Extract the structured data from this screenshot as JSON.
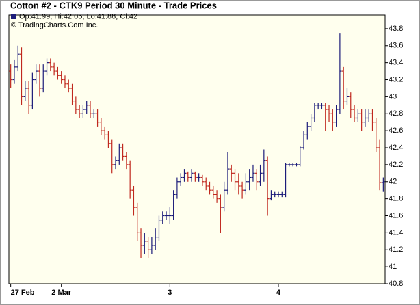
{
  "chart_data": {
    "type": "ohlc",
    "title": "Cotton #2 - CTK9 Period 30 Minute - Trade Prices",
    "legend_text": "Op:41.99, Hi:42.05, Lo:41.88, Cl:42",
    "credit": "© TradingCharts.Com Inc.",
    "up_color": "#1c1c7a",
    "down_color": "#c0281e",
    "categories": [
      "27 Feb",
      null,
      null,
      null,
      null,
      null,
      null,
      null,
      null,
      null,
      null,
      null,
      null,
      null,
      "2 Mar",
      null,
      null,
      null,
      null,
      null,
      null,
      null,
      null,
      null,
      null,
      null,
      null,
      null,
      null,
      null,
      null,
      null,
      null,
      null,
      null,
      null,
      null,
      null,
      null,
      null,
      null,
      null,
      null,
      null,
      "3",
      null,
      null,
      null,
      null,
      null,
      null,
      null,
      null,
      null,
      null,
      null,
      null,
      null,
      null,
      null,
      null,
      null,
      null,
      null,
      null,
      null,
      null,
      null,
      null,
      null,
      null,
      null,
      null,
      null,
      "4",
      null,
      null,
      null,
      null,
      null,
      null,
      null,
      null,
      null,
      null,
      null,
      null,
      null,
      null,
      null,
      null,
      null,
      null,
      null,
      null,
      null,
      null,
      null,
      null,
      null,
      null,
      null,
      null,
      null
    ],
    "open": [
      43.3,
      43.2,
      43.35,
      43.5,
      43.0,
      43.1,
      42.9,
      43.2,
      43.3,
      43.1,
      43.3,
      43.4,
      43.35,
      43.3,
      43.25,
      43.2,
      43.15,
      43.1,
      42.95,
      42.85,
      42.8,
      42.85,
      42.9,
      42.8,
      42.8,
      42.7,
      42.6,
      42.55,
      42.45,
      42.2,
      42.25,
      42.4,
      42.3,
      42.2,
      41.9,
      41.7,
      41.4,
      41.25,
      41.3,
      41.2,
      41.25,
      41.35,
      41.55,
      41.6,
      41.6,
      41.6,
      41.85,
      42.0,
      42.05,
      42.1,
      42.05,
      42.1,
      42.05,
      42.05,
      42.0,
      41.95,
      41.9,
      41.85,
      41.8,
      41.7,
      41.9,
      42.15,
      42.1,
      42.0,
      41.95,
      41.9,
      42.0,
      42.05,
      42.1,
      42.0,
      42.1,
      42.25,
      41.8,
      41.85,
      41.85,
      41.85,
      41.85,
      42.2,
      42.2,
      42.2,
      42.2,
      42.4,
      42.55,
      42.65,
      42.75,
      42.9,
      42.9,
      42.9,
      42.85,
      42.8,
      42.7,
      42.85,
      43.3,
      42.95,
      43.0,
      42.85,
      42.75,
      42.8,
      42.7,
      42.75,
      42.8,
      42.7,
      42.4,
      41.99
    ],
    "high": [
      43.38,
      43.43,
      43.6,
      43.58,
      43.18,
      43.18,
      43.28,
      43.38,
      43.38,
      43.38,
      43.45,
      43.45,
      43.4,
      43.35,
      43.3,
      43.25,
      43.2,
      43.15,
      43.0,
      42.9,
      42.9,
      42.95,
      42.95,
      42.85,
      42.85,
      42.75,
      42.65,
      42.6,
      42.5,
      42.3,
      42.45,
      42.45,
      42.35,
      42.25,
      41.95,
      41.75,
      41.45,
      41.4,
      41.35,
      41.35,
      41.45,
      41.6,
      41.65,
      41.65,
      41.7,
      41.9,
      42.05,
      42.1,
      42.15,
      42.12,
      42.15,
      42.12,
      42.1,
      42.08,
      42.05,
      42.0,
      41.95,
      41.9,
      41.85,
      42.0,
      42.35,
      42.2,
      42.15,
      42.1,
      42.0,
      42.1,
      42.15,
      42.2,
      42.15,
      42.2,
      42.38,
      42.3,
      41.9,
      41.88,
      41.88,
      41.88,
      42.22,
      42.22,
      42.22,
      42.22,
      42.42,
      42.6,
      42.7,
      42.8,
      42.93,
      42.93,
      42.93,
      42.93,
      42.9,
      42.85,
      42.9,
      43.75,
      43.35,
      43.1,
      43.05,
      42.9,
      42.85,
      42.85,
      42.85,
      42.85,
      42.85,
      42.75,
      42.5,
      42.05
    ],
    "low": [
      43.1,
      43.15,
      43.3,
      42.9,
      42.95,
      42.8,
      42.85,
      43.15,
      43.0,
      43.05,
      43.25,
      43.3,
      43.25,
      43.2,
      43.15,
      43.1,
      43.05,
      42.9,
      42.8,
      42.75,
      42.75,
      42.8,
      42.75,
      42.75,
      42.65,
      42.55,
      42.5,
      42.4,
      42.1,
      42.15,
      42.2,
      42.25,
      42.15,
      41.8,
      41.6,
      41.3,
      41.1,
      41.15,
      41.1,
      41.15,
      41.2,
      41.3,
      41.5,
      41.55,
      41.5,
      41.55,
      41.8,
      41.95,
      42.0,
      42.0,
      42.0,
      42.0,
      42.0,
      41.95,
      41.9,
      41.85,
      41.8,
      41.75,
      41.4,
      41.65,
      41.85,
      42.0,
      41.9,
      41.85,
      41.8,
      41.85,
      41.9,
      42.0,
      41.9,
      41.95,
      42.0,
      41.6,
      41.78,
      41.82,
      41.82,
      41.82,
      41.82,
      42.18,
      42.18,
      42.18,
      42.18,
      42.38,
      42.5,
      42.6,
      42.7,
      42.85,
      42.85,
      42.6,
      42.7,
      42.6,
      42.65,
      42.8,
      42.85,
      42.9,
      42.75,
      42.7,
      42.7,
      42.6,
      42.65,
      42.7,
      42.6,
      42.35,
      41.9,
      41.88
    ],
    "close": [
      43.2,
      43.35,
      43.5,
      43.0,
      43.1,
      42.9,
      43.2,
      43.3,
      43.1,
      43.3,
      43.4,
      43.35,
      43.3,
      43.25,
      43.2,
      43.15,
      43.1,
      42.95,
      42.85,
      42.8,
      42.85,
      42.9,
      42.8,
      42.8,
      42.7,
      42.6,
      42.55,
      42.45,
      42.2,
      42.25,
      42.4,
      42.3,
      42.2,
      41.9,
      41.7,
      41.4,
      41.25,
      41.3,
      41.2,
      41.25,
      41.35,
      41.55,
      41.6,
      41.6,
      41.6,
      41.85,
      42.0,
      42.05,
      42.1,
      42.05,
      42.1,
      42.05,
      42.05,
      42.0,
      41.95,
      41.9,
      41.85,
      41.8,
      41.7,
      41.9,
      42.15,
      42.1,
      42.0,
      41.95,
      41.9,
      42.0,
      42.05,
      42.1,
      42.0,
      42.1,
      42.25,
      41.8,
      41.85,
      41.85,
      41.85,
      41.85,
      42.2,
      42.2,
      42.2,
      42.2,
      42.4,
      42.55,
      42.65,
      42.75,
      42.9,
      42.9,
      42.9,
      42.85,
      42.8,
      42.7,
      42.85,
      43.3,
      42.95,
      43.0,
      42.85,
      42.75,
      42.8,
      42.7,
      42.75,
      42.8,
      42.7,
      42.4,
      41.99,
      42
    ],
    "ylim": [
      40.8,
      43.96
    ],
    "yticks": [
      40.8,
      41,
      41.2,
      41.4,
      41.6,
      41.8,
      42,
      42.2,
      42.4,
      42.6,
      42.8,
      43,
      43.2,
      43.4,
      43.6,
      43.8
    ],
    "grid": false
  }
}
